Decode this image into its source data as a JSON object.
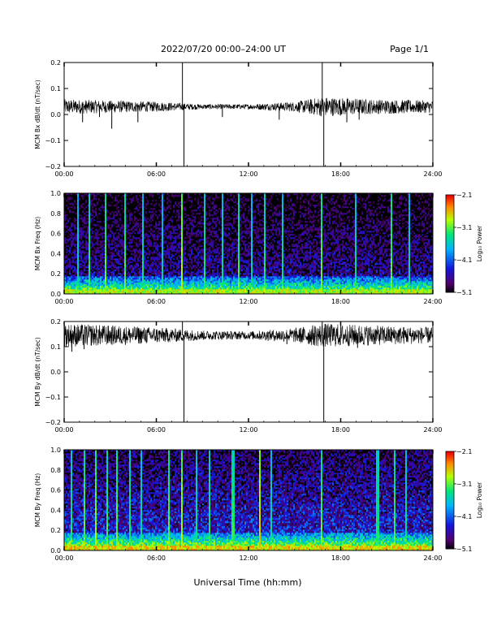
{
  "header": {
    "title": "2022/07/20  00:00–24:00 UT",
    "page": "Page 1/1"
  },
  "xlabel": "Universal Time (hh:mm)",
  "chart_data": [
    {
      "type": "line",
      "ylabel": "MCM Bx dB/dt (nT/sec)",
      "xlim": [
        0,
        24
      ],
      "ylim": [
        -0.2,
        0.2
      ],
      "x_ticks": [
        "00:00",
        "06:00",
        "12:00",
        "18:00",
        "24:00"
      ],
      "y_ticks": [
        {
          "v": 0.2,
          "label": "0.2"
        },
        {
          "v": 0.1,
          "label": "0.1"
        },
        {
          "v": 0.0,
          "label": "0.0"
        },
        {
          "v": -0.1,
          "label": "−0.1"
        },
        {
          "v": -0.2,
          "label": "−0.2"
        }
      ],
      "series": [
        {
          "baseline": 0.03,
          "noise_envelope": [
            {
              "x": 0,
              "amp": 0.018
            },
            {
              "x": 3,
              "amp": 0.015
            },
            {
              "x": 6,
              "amp": 0.012
            },
            {
              "x": 9,
              "amp": 0.006
            },
            {
              "x": 12,
              "amp": 0.006
            },
            {
              "x": 15,
              "amp": 0.012
            },
            {
              "x": 16.8,
              "amp": 0.024
            },
            {
              "x": 20,
              "amp": 0.018
            },
            {
              "x": 24,
              "amp": 0.015
            }
          ],
          "spikes": [
            {
              "x": 1.2,
              "y": -0.03
            },
            {
              "x": 2.3,
              "y": -0.01
            },
            {
              "x": 3.1,
              "y": -0.055
            },
            {
              "x": 4.8,
              "y": -0.03
            },
            {
              "x": 7.7,
              "y": 0.2
            },
            {
              "x": 7.8,
              "y": -0.2
            },
            {
              "x": 10.3,
              "y": -0.01
            },
            {
              "x": 14.0,
              "y": -0.02
            },
            {
              "x": 16.8,
              "y": 0.2
            },
            {
              "x": 16.9,
              "y": -0.2
            },
            {
              "x": 18.4,
              "y": -0.03
            },
            {
              "x": 19.2,
              "y": -0.02
            }
          ]
        }
      ]
    },
    {
      "type": "heatmap",
      "ylabel": "MCM Bx Freq (Hz)",
      "xlim": [
        0,
        24
      ],
      "ylim": [
        0,
        1.0
      ],
      "x_ticks": [
        "00:00",
        "06:00",
        "12:00",
        "18:00",
        "24:00"
      ],
      "y_ticks": [
        {
          "v": 1.0,
          "label": "1.0"
        },
        {
          "v": 0.8,
          "label": "0.8"
        },
        {
          "v": 0.6,
          "label": "0.6"
        },
        {
          "v": 0.4,
          "label": "0.4"
        },
        {
          "v": 0.2,
          "label": "0.2"
        },
        {
          "v": 0.0,
          "label": "0.0"
        }
      ],
      "colorbar": {
        "label": "Log₁₀ Power",
        "range": [
          -5.1,
          -2.1
        ],
        "ticks": [
          {
            "v": -2.1,
            "label": "−2.1"
          },
          {
            "v": -3.1,
            "label": "−3.1"
          },
          {
            "v": -4.1,
            "label": "−4.1"
          },
          {
            "v": -5.1,
            "label": "−5.1"
          }
        ]
      },
      "background_log_power": -4.6,
      "low_freq_log_power": -3.2,
      "broadband_bursts": [
        {
          "x": 0.9,
          "level": -3.4
        },
        {
          "x": 1.6,
          "level": -3.2
        },
        {
          "x": 2.7,
          "level": -3.0
        },
        {
          "x": 4.0,
          "level": -3.1
        },
        {
          "x": 5.1,
          "level": -3.3
        },
        {
          "x": 6.4,
          "level": -3.4
        },
        {
          "x": 7.7,
          "level": -2.8
        },
        {
          "x": 9.1,
          "level": -3.2
        },
        {
          "x": 10.3,
          "level": -3.3
        },
        {
          "x": 11.4,
          "level": -3.1
        },
        {
          "x": 12.2,
          "level": -3.4
        },
        {
          "x": 13.1,
          "level": -3.2
        },
        {
          "x": 14.2,
          "level": -3.3
        },
        {
          "x": 16.8,
          "level": -3.0
        },
        {
          "x": 19.0,
          "level": -3.3
        },
        {
          "x": 21.3,
          "level": -3.0
        },
        {
          "x": 22.5,
          "level": -3.4
        }
      ]
    },
    {
      "type": "line",
      "ylabel": "MCM By dB/dt (nT/sec)",
      "xlim": [
        0,
        24
      ],
      "ylim": [
        -0.2,
        0.2
      ],
      "x_ticks": [
        "00:00",
        "06:00",
        "12:00",
        "18:00",
        "24:00"
      ],
      "y_ticks": [
        {
          "v": 0.2,
          "label": "0.2"
        },
        {
          "v": 0.1,
          "label": "0.1"
        },
        {
          "v": 0.0,
          "label": "0.0"
        },
        {
          "v": -0.1,
          "label": "−0.1"
        },
        {
          "v": -0.2,
          "label": "−0.2"
        }
      ],
      "series": [
        {
          "baseline": 0.145,
          "noise_envelope": [
            {
              "x": 0,
              "amp": 0.03
            },
            {
              "x": 3,
              "amp": 0.025
            },
            {
              "x": 6,
              "amp": 0.02
            },
            {
              "x": 9,
              "amp": 0.012
            },
            {
              "x": 12,
              "amp": 0.01
            },
            {
              "x": 15,
              "amp": 0.018
            },
            {
              "x": 16.8,
              "amp": 0.03
            },
            {
              "x": 20,
              "amp": 0.025
            },
            {
              "x": 24,
              "amp": 0.02
            }
          ],
          "spikes": [
            {
              "x": 0.5,
              "y": 0.08
            },
            {
              "x": 1.3,
              "y": 0.09
            },
            {
              "x": 7.7,
              "y": 0.2
            },
            {
              "x": 7.8,
              "y": -0.2
            },
            {
              "x": 14.5,
              "y": 0.11
            },
            {
              "x": 16.8,
              "y": 0.2
            },
            {
              "x": 16.9,
              "y": -0.2
            },
            {
              "x": 19.1,
              "y": 0.095
            }
          ]
        }
      ]
    },
    {
      "type": "heatmap",
      "ylabel": "MCM By Freq (Hz)",
      "xlim": [
        0,
        24
      ],
      "ylim": [
        0,
        1.0
      ],
      "x_ticks": [
        "00:00",
        "06:00",
        "12:00",
        "18:00",
        "24:00"
      ],
      "y_ticks": [
        {
          "v": 1.0,
          "label": "1.0"
        },
        {
          "v": 0.8,
          "label": "0.8"
        },
        {
          "v": 0.6,
          "label": "0.6"
        },
        {
          "v": 0.4,
          "label": "0.4"
        },
        {
          "v": 0.2,
          "label": "0.2"
        },
        {
          "v": 0.0,
          "label": "0.0"
        }
      ],
      "colorbar": {
        "label": "Log₁₀ Power",
        "range": [
          -5.1,
          -2.1
        ],
        "ticks": [
          {
            "v": -2.1,
            "label": "−2.1"
          },
          {
            "v": -3.1,
            "label": "−3.1"
          },
          {
            "v": -4.1,
            "label": "−4.1"
          },
          {
            "v": -5.1,
            "label": "−5.1"
          }
        ]
      },
      "background_log_power": -4.3,
      "low_freq_log_power": -3.0,
      "broadband_bursts": [
        {
          "x": 0.5,
          "level": -3.2
        },
        {
          "x": 1.3,
          "level": -3.0
        },
        {
          "x": 2.1,
          "level": -2.9
        },
        {
          "x": 2.8,
          "level": -3.1
        },
        {
          "x": 3.4,
          "level": -3.0
        },
        {
          "x": 4.3,
          "level": -3.2
        },
        {
          "x": 5.0,
          "level": -3.3
        },
        {
          "x": 6.8,
          "level": -3.0
        },
        {
          "x": 7.7,
          "level": -2.8
        },
        {
          "x": 8.6,
          "level": -3.3
        },
        {
          "x": 9.5,
          "level": -3.2
        },
        {
          "x": 11.0,
          "level": -3.1
        },
        {
          "x": 12.7,
          "level": -2.6
        },
        {
          "x": 13.5,
          "level": -3.3
        },
        {
          "x": 16.8,
          "level": -3.0
        },
        {
          "x": 20.4,
          "level": -3.2
        },
        {
          "x": 21.5,
          "level": -3.1
        },
        {
          "x": 22.3,
          "level": -3.3
        }
      ]
    }
  ]
}
